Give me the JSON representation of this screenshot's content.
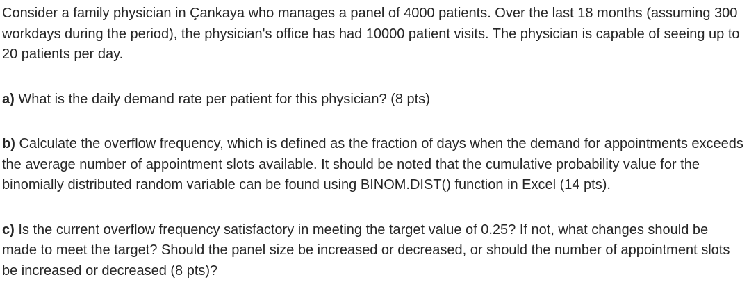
{
  "document": {
    "colors": {
      "text": "#262626",
      "background": "#ffffff"
    },
    "intro": "Consider a family physician in Çankaya who manages a panel of 4000 patients. Over the last 18 months (assuming 300 workdays during the period), the physician's office has had 10000 patient visits. The physician is capable of seeing up to 20 patients per day.",
    "parts": [
      {
        "label": "a)",
        "text": " What is the daily demand rate per patient for this physician? (8 pts)"
      },
      {
        "label": "b)",
        "text": " Calculate the overflow frequency, which is defined as the fraction of days when the demand for appointments exceeds the average number of appointment slots available. It should be noted that the cumulative probability value for the binomially distributed random variable can be found using BINOM.DIST() function in Excel (14 pts)."
      },
      {
        "label": "c)",
        "text": " Is the current overflow frequency satisfactory in meeting the target value of 0.25? If not, what changes should be made to meet the target? Should the panel size be increased or decreased, or should the number of appointment slots be increased or decreased (8 pts)?"
      }
    ]
  }
}
